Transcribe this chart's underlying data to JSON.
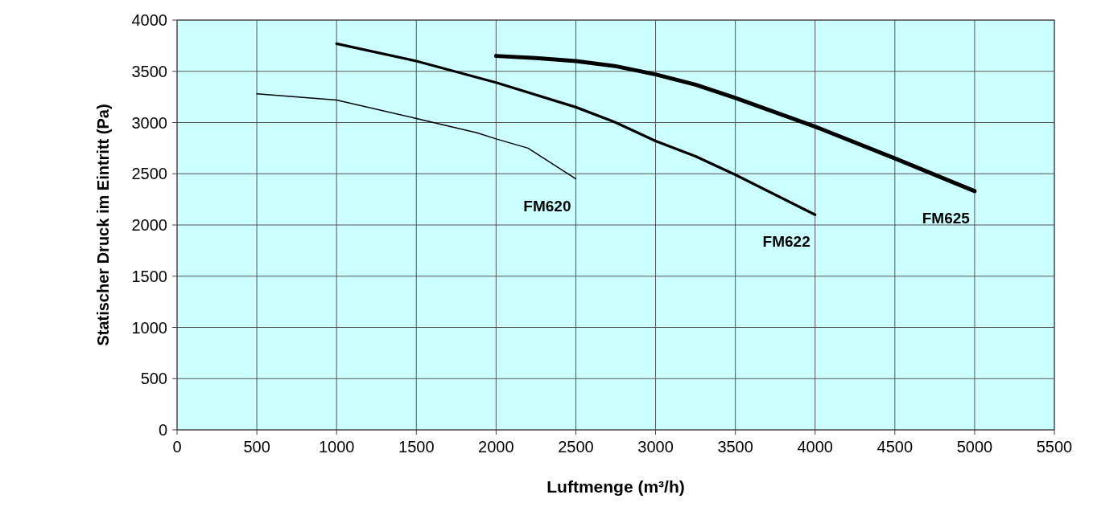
{
  "chart_data": {
    "type": "line",
    "xlabel": "Luftmenge (m³/h)",
    "ylabel": "Statischer Druck im Eintritt (Pa)",
    "xlim": [
      0,
      5500
    ],
    "xticks": [
      0,
      500,
      1000,
      1500,
      2000,
      2500,
      3000,
      3500,
      4000,
      4500,
      5000,
      5500
    ],
    "ylim": [
      0,
      4000
    ],
    "yticks": [
      0,
      500,
      1000,
      1500,
      2000,
      2500,
      3000,
      3500,
      4000
    ],
    "grid": true,
    "marker": "none",
    "line_style": "solid",
    "series": [
      {
        "name": "FM620",
        "color": "#000000",
        "x": [
          500,
          1000,
          1500,
          1880,
          2000,
          2200,
          2500
        ],
        "values": [
          3280,
          3220,
          3040,
          2900,
          2840,
          2750,
          2450
        ]
      },
      {
        "name": "FM622",
        "color": "#000000",
        "x": [
          1000,
          1500,
          2000,
          2500,
          2750,
          3000,
          3250,
          3500,
          4000
        ],
        "values": [
          3770,
          3600,
          3390,
          3150,
          3000,
          2820,
          2670,
          2490,
          2100
        ]
      },
      {
        "name": "FM625",
        "color": "#000000",
        "x": [
          2000,
          2250,
          2500,
          2750,
          3000,
          3250,
          3500,
          4000,
          4500,
          5000
        ],
        "values": [
          3650,
          3630,
          3600,
          3550,
          3470,
          3370,
          3240,
          2960,
          2650,
          2330
        ]
      }
    ]
  }
}
